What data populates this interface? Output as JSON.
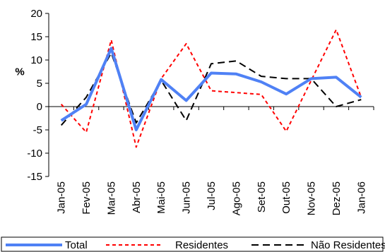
{
  "chart_data": {
    "type": "line",
    "ylabel": "%",
    "xlabel": "",
    "ylim": [
      -15,
      20
    ],
    "yticks": [
      -15,
      -10,
      -5,
      0,
      5,
      10,
      15,
      20
    ],
    "categories": [
      "Jan-05",
      "Fev-05",
      "Mar-05",
      "Abr-05",
      "Mai-05",
      "Jun-05",
      "Jul-05",
      "Ago-05",
      "Set-05",
      "Out-05",
      "Nov-05",
      "Dez-05",
      "Jan-06"
    ],
    "grid": false,
    "legend_position": "bottom",
    "series": [
      {
        "name": "Total",
        "color": "#4F81F5",
        "style": "solid-thick",
        "values": [
          -3.0,
          0.5,
          12.5,
          -5.0,
          5.8,
          1.3,
          7.2,
          7.0,
          5.3,
          2.7,
          6.0,
          6.3,
          2.0
        ]
      },
      {
        "name": "Residentes",
        "color": "#FF0000",
        "style": "dotted",
        "values": [
          0.5,
          -5.5,
          14.3,
          -8.7,
          6.0,
          13.5,
          3.4,
          3.0,
          2.6,
          -5.3,
          5.6,
          16.5,
          2.0
        ]
      },
      {
        "name": "Não Residentes",
        "color": "#000000",
        "style": "dashed",
        "values": [
          -4.0,
          2.0,
          11.5,
          -3.5,
          5.6,
          -3.0,
          9.2,
          9.8,
          6.5,
          6.0,
          6.0,
          0.0,
          1.5
        ]
      }
    ]
  }
}
